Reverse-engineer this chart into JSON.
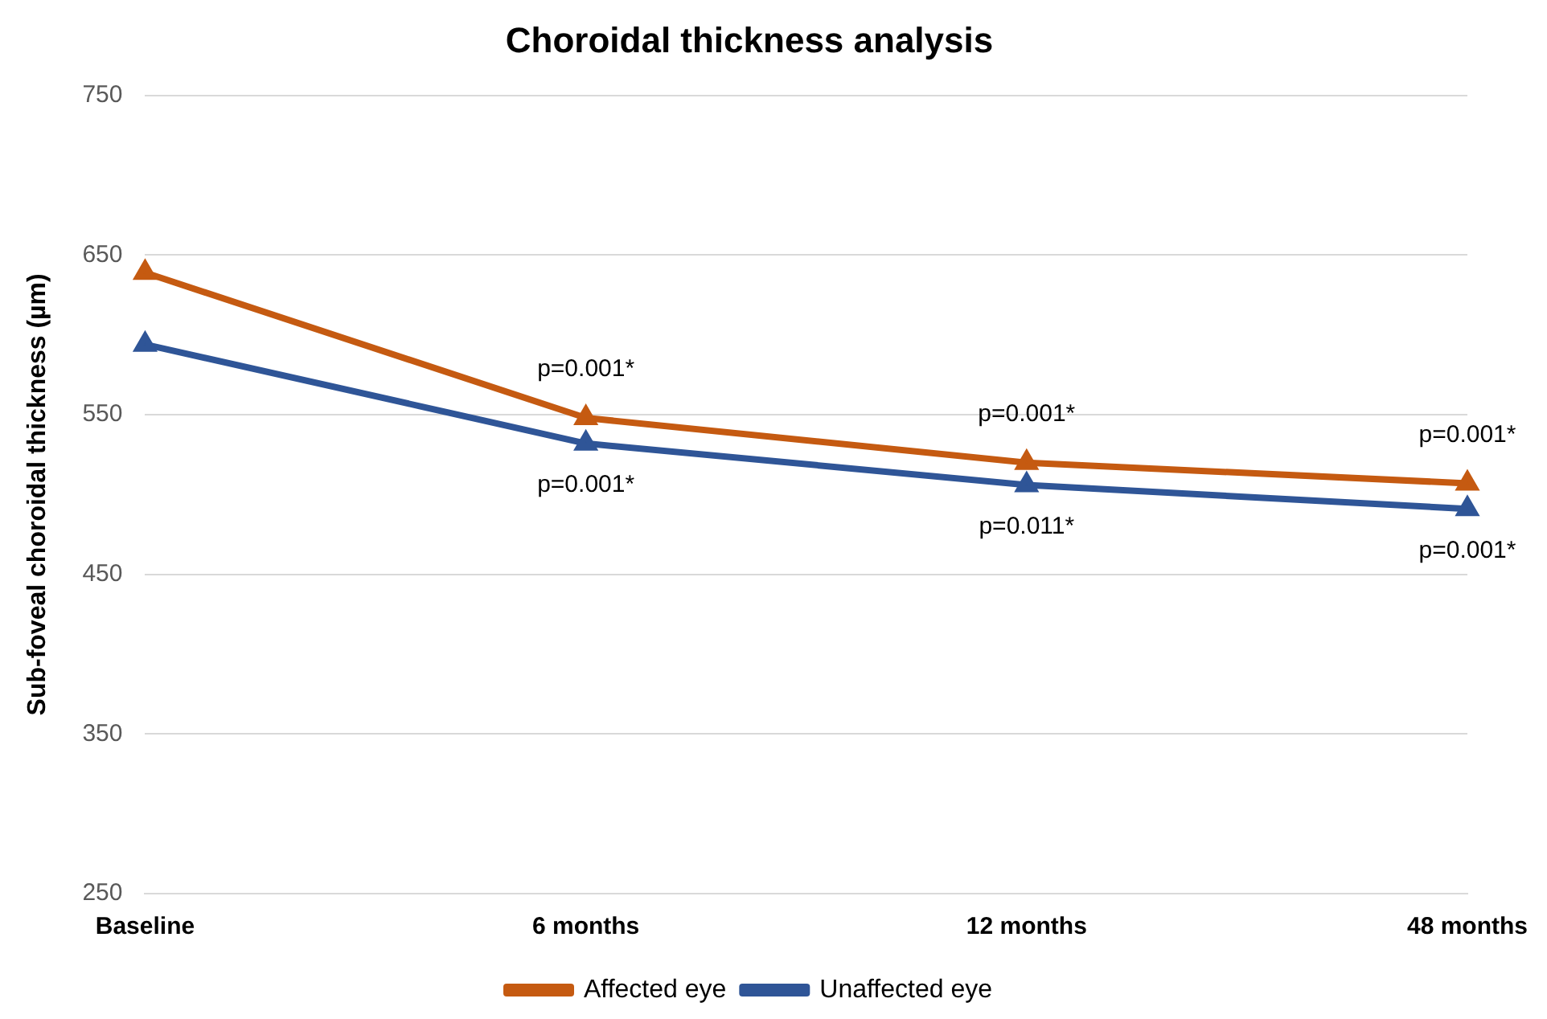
{
  "chart_data": {
    "type": "line",
    "title": "Choroidal thickness analysis",
    "ylabel": "Sub-foveal choroidal thickness (µm)",
    "categories": [
      "Baseline",
      "6 months",
      "12 months",
      "48 months"
    ],
    "series": [
      {
        "name": "Affected eye",
        "color": "#c55a11",
        "values": [
          639,
          548,
          520,
          507
        ]
      },
      {
        "name": "Unaffected eye",
        "color": "#2f5597",
        "values": [
          594,
          532,
          506,
          491
        ]
      }
    ],
    "ylim": [
      250,
      750
    ],
    "yticks": [
      250,
      350,
      450,
      550,
      650,
      750
    ],
    "grid": "y",
    "legend": "bottom",
    "marker": "triangle",
    "line_style": "solid",
    "annotations": [
      {
        "text": "p=0.001*",
        "x": "6 months",
        "y": 548
      },
      {
        "text": "p=0.001*",
        "x": "12 months",
        "y": 520
      },
      {
        "text": "p=0.001*",
        "x": "48 months",
        "y": 507
      },
      {
        "text": "p=0.001*",
        "x": "6 months",
        "y": 532
      },
      {
        "text": "p=0.011*",
        "x": "12 months",
        "y": 506
      },
      {
        "text": "p=0.001*",
        "x": "48 months",
        "y": 491
      }
    ]
  }
}
